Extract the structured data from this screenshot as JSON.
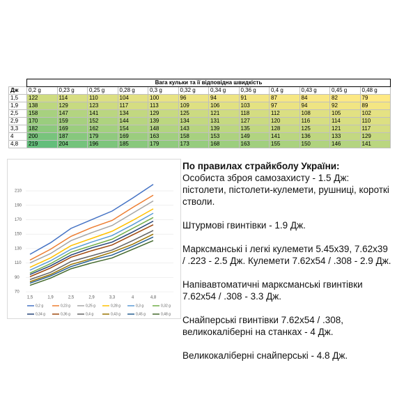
{
  "table": {
    "title": "Вага кульки та її відповідна швидкість",
    "corner": "Дж",
    "columns": [
      "0,2 g",
      "0,23 g",
      "0,25 g",
      "0,28 g",
      "0,3 g",
      "0,32 g",
      "0,34 g",
      "0,36 g",
      "0,4 g",
      "0,43 g",
      "0,45 g",
      "0,48 g"
    ],
    "rows": [
      {
        "label": "1,5",
        "values": [
          122,
          114,
          110,
          104,
          100,
          96,
          94,
          91,
          87,
          84,
          82,
          79
        ]
      },
      {
        "label": "1,9",
        "values": [
          138,
          129,
          123,
          117,
          113,
          109,
          106,
          103,
          97,
          94,
          92,
          89
        ]
      },
      {
        "label": "2,5",
        "values": [
          158,
          147,
          141,
          134,
          129,
          125,
          121,
          118,
          112,
          108,
          105,
          102
        ]
      },
      {
        "label": "2,9",
        "values": [
          170,
          159,
          152,
          144,
          139,
          134,
          131,
          127,
          120,
          116,
          114,
          110
        ]
      },
      {
        "label": "3,3",
        "values": [
          182,
          169,
          162,
          154,
          148,
          143,
          139,
          135,
          128,
          125,
          121,
          117
        ]
      },
      {
        "label": "4",
        "values": [
          200,
          187,
          179,
          169,
          163,
          158,
          153,
          149,
          141,
          136,
          133,
          129
        ]
      },
      {
        "label": "4,8",
        "values": [
          219,
          204,
          196,
          185,
          179,
          173,
          168,
          163,
          155,
          150,
          146,
          141
        ]
      }
    ],
    "color_scale": [
      "#ffe984",
      "#63be7b"
    ]
  },
  "chart_data": {
    "type": "line",
    "categories": [
      "1,5",
      "1,9",
      "2,5",
      "2,9",
      "3,3",
      "4",
      "4,8"
    ],
    "series": [
      {
        "name": "0,2 g",
        "color": "#4472c4",
        "values": [
          122,
          138,
          158,
          170,
          182,
          200,
          219
        ]
      },
      {
        "name": "0,23 g",
        "color": "#ed7d31",
        "values": [
          114,
          129,
          147,
          159,
          169,
          187,
          204
        ]
      },
      {
        "name": "0,25 g",
        "color": "#a5a5a5",
        "values": [
          110,
          123,
          141,
          152,
          162,
          179,
          196
        ]
      },
      {
        "name": "0,28 g",
        "color": "#ffc000",
        "values": [
          104,
          117,
          134,
          144,
          154,
          169,
          185
        ]
      },
      {
        "name": "0,3 g",
        "color": "#5b9bd5",
        "values": [
          100,
          113,
          129,
          139,
          148,
          163,
          179
        ]
      },
      {
        "name": "0,32 g",
        "color": "#70ad47",
        "values": [
          96,
          109,
          125,
          134,
          143,
          158,
          173
        ]
      },
      {
        "name": "0,34 g",
        "color": "#264478",
        "values": [
          94,
          106,
          121,
          131,
          139,
          153,
          168
        ]
      },
      {
        "name": "0,36 g",
        "color": "#9e480e",
        "values": [
          91,
          103,
          118,
          127,
          135,
          149,
          163
        ]
      },
      {
        "name": "0,4 g",
        "color": "#636363",
        "values": [
          87,
          97,
          112,
          120,
          128,
          141,
          155
        ]
      },
      {
        "name": "0,43 g",
        "color": "#997300",
        "values": [
          84,
          94,
          108,
          116,
          125,
          136,
          150
        ]
      },
      {
        "name": "0,45 g",
        "color": "#255e91",
        "values": [
          82,
          92,
          105,
          114,
          121,
          133,
          146
        ]
      },
      {
        "name": "0,48 g",
        "color": "#43682b",
        "values": [
          79,
          89,
          102,
          110,
          117,
          129,
          141
        ]
      }
    ],
    "ylim": [
      70,
      230
    ],
    "yticks": [
      70,
      90,
      110,
      130,
      150,
      170,
      190,
      210
    ],
    "grid": true,
    "legend": "bottom"
  },
  "text": {
    "heading": "По правилах страйкболу України:",
    "paragraphs": [
      "Особиста зброя самозахисту - 1.5 Дж: пістолети, пістолети-кулемети, рушниці, короткі стволи.",
      "Штурмові гвинтівки - 1.9 Дж.",
      "Марксманські і легкі кулемети 5.45x39, 7.62x39 / .223 - 2.5 Дж. Кулемети 7.62x54 / .308 - 2.9 Дж.",
      "Напівавтоматичні марксманські гвинтівки 7.62x54 / .308 - 3.3 Дж.",
      "Снайперські гвинтівки 7.62x54 / .308, великокаліберні на станках - 4 Дж.",
      "Великокаліберні снайперські - 4.8 Дж."
    ]
  }
}
